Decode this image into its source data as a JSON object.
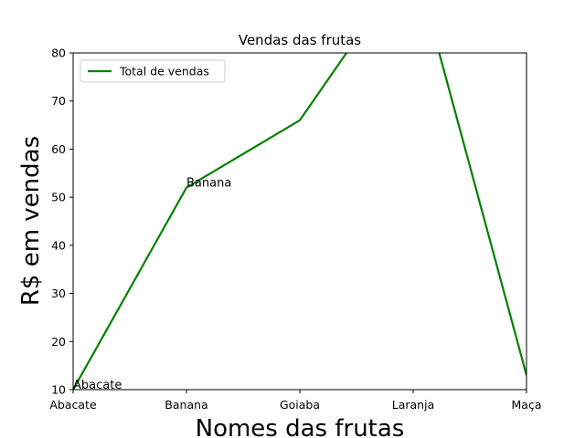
{
  "chart_data": {
    "type": "line",
    "title": "Vendas das frutas",
    "xlabel": "Nomes das frutas",
    "ylabel": "R$ em vendas",
    "categories": [
      "Abacate",
      "Banana",
      "Goiaba",
      "Laranja",
      "Maça"
    ],
    "series": [
      {
        "name": "Total de vendas",
        "values": [
          10,
          52,
          66,
          100,
          13
        ],
        "color": "#008000"
      }
    ],
    "ylim": [
      10,
      80
    ],
    "yticks": [
      10,
      20,
      30,
      40,
      50,
      60,
      70,
      80
    ],
    "annotations": [
      {
        "text": "Abacate",
        "category": "Abacate",
        "value": 10
      },
      {
        "text": "Banana",
        "category": "Banana",
        "value": 52
      }
    ],
    "legend": "top-left",
    "grid": false
  }
}
